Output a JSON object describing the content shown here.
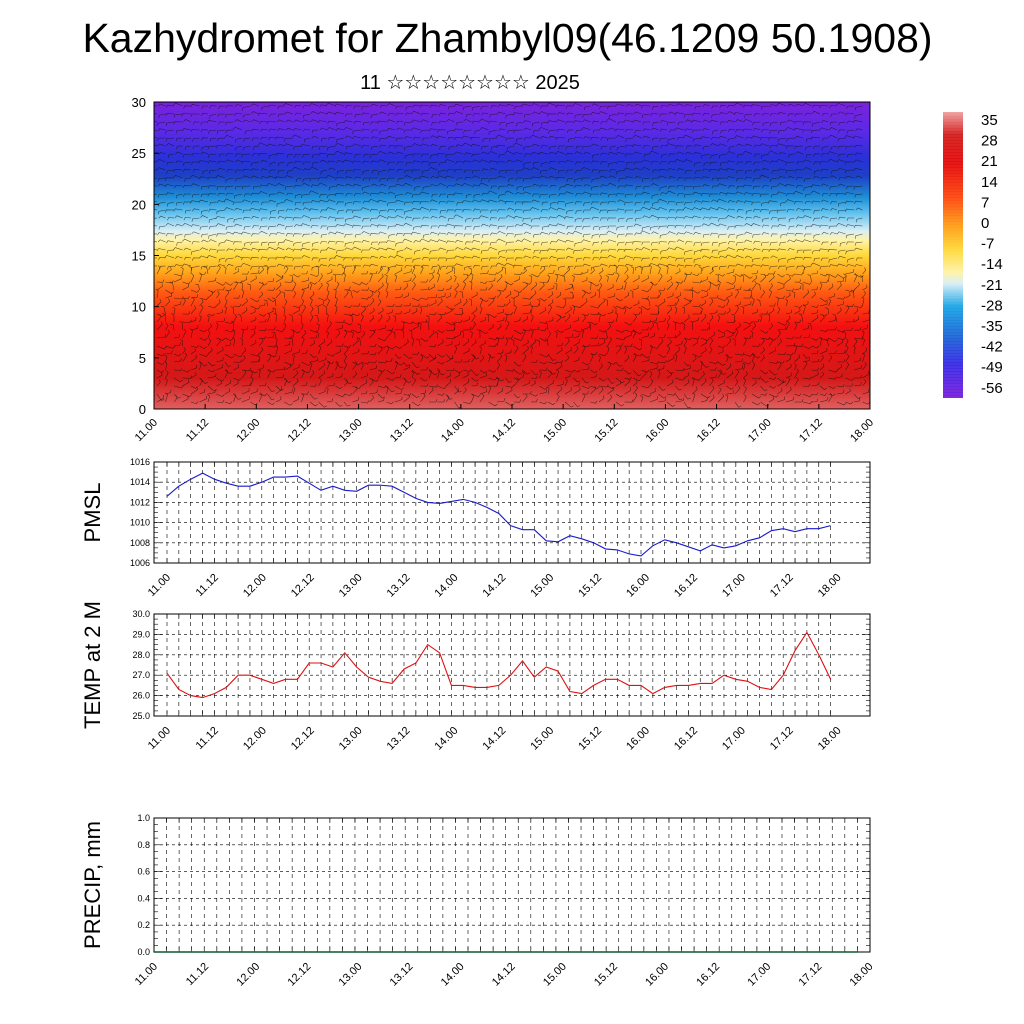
{
  "header": {
    "title": "Kazhydromet for Zhambyl09(46.1209 50.1908)",
    "subtitle": "11 ☆☆☆☆☆☆☆☆ 2025"
  },
  "colors": {
    "pmsl_line": "#1a1acc",
    "temp_line": "#dd1111",
    "precip_line": "#0b5a2a",
    "colormap": [
      "#7a22dd",
      "#4a2ee6",
      "#2233d6",
      "#1e6ad6",
      "#1ea6e6",
      "#6fc8ee",
      "#d9eef6",
      "#fff3a6",
      "#ffd83a",
      "#ffa51a",
      "#ff6a14",
      "#ff1d10",
      "#e40d0d",
      "#d42020",
      "#e05a5a",
      "#f0a0a0"
    ]
  },
  "chart_data": [
    {
      "type": "heatmap",
      "title": "",
      "ylim": [
        0,
        30
      ],
      "yticks": [
        "0",
        "5",
        "10",
        "15",
        "20",
        "25",
        "30"
      ],
      "xticks": [
        "11.00",
        "11.12",
        "12.00",
        "12.12",
        "13.00",
        "13.12",
        "14.00",
        "14.12",
        "15.00",
        "15.12",
        "16.00",
        "16.12",
        "17.00",
        "17.12",
        "18.00"
      ],
      "colorbar_labels": [
        "35",
        "28",
        "21",
        "14",
        "7",
        "0",
        "-7",
        "-14",
        "-21",
        "-28",
        "-35",
        "-42",
        "-49",
        "-56"
      ],
      "colorbar_range": [
        -63,
        35
      ],
      "overlay": "wind barbs"
    },
    {
      "type": "line",
      "ylabel": "PMSL",
      "ylim": [
        1006,
        1016
      ],
      "yticks": [
        "1006",
        "1008",
        "1010",
        "1012",
        "1014",
        "1016"
      ],
      "xticks": [
        "11.00",
        "11.12",
        "12.00",
        "12.12",
        "13.00",
        "13.12",
        "14.00",
        "14.12",
        "15.00",
        "15.12",
        "16.00",
        "16.12",
        "17.00",
        "17.12",
        "18.00"
      ],
      "series": [
        {
          "values": [
            1012.6,
            1013.6,
            1014.3,
            1014.9,
            1014.3,
            1013.9,
            1013.6,
            1013.6,
            1014.0,
            1014.5,
            1014.5,
            1014.6,
            1013.9,
            1013.2,
            1013.6,
            1013.2,
            1013.1,
            1013.7,
            1013.7,
            1013.6,
            1013.0,
            1012.4,
            1012.0,
            1011.9,
            1012.1,
            1012.3,
            1012.0,
            1011.5,
            1010.9,
            1009.7,
            1009.3,
            1009.3,
            1008.2,
            1008.1,
            1008.7,
            1008.4,
            1008.0,
            1007.4,
            1007.3,
            1006.9,
            1006.7,
            1007.7,
            1008.3,
            1008.0,
            1007.6,
            1007.2,
            1007.8,
            1007.5,
            1007.7,
            1008.2,
            1008.5,
            1009.2,
            1009.4,
            1009.1,
            1009.4,
            1009.4,
            1009.7
          ]
        }
      ]
    },
    {
      "type": "line",
      "ylabel": "TEMP at 2 M",
      "ylim": [
        25.0,
        30.0
      ],
      "yticks": [
        "25.0",
        "26.0",
        "27.0",
        "28.0",
        "29.0",
        "30.0"
      ],
      "xticks": [
        "11.00",
        "11.12",
        "12.00",
        "12.12",
        "13.00",
        "13.12",
        "14.00",
        "14.12",
        "15.00",
        "15.12",
        "16.00",
        "16.12",
        "17.00",
        "17.12",
        "18.00"
      ],
      "series": [
        {
          "values": [
            27.1,
            26.3,
            26.0,
            25.9,
            26.1,
            26.4,
            27.0,
            27.0,
            26.8,
            26.6,
            26.8,
            26.8,
            27.6,
            27.6,
            27.4,
            28.1,
            27.4,
            26.9,
            26.7,
            26.6,
            27.3,
            27.6,
            28.5,
            28.1,
            26.5,
            26.5,
            26.4,
            26.4,
            26.5,
            27.0,
            27.7,
            26.9,
            27.4,
            27.2,
            26.2,
            26.1,
            26.5,
            26.8,
            26.8,
            26.5,
            26.5,
            26.1,
            26.4,
            26.5,
            26.5,
            26.6,
            26.6,
            27.0,
            26.8,
            26.7,
            26.4,
            26.3,
            27.0,
            28.2,
            29.1,
            28.0,
            26.8
          ]
        }
      ]
    },
    {
      "type": "line",
      "ylabel": "PRECIP, mm",
      "ylim": [
        0.0,
        1.0
      ],
      "yticks": [
        "0.0",
        "0.2",
        "0.4",
        "0.6",
        "0.8",
        "1.0"
      ],
      "xticks": [
        "11.00",
        "11.12",
        "12.00",
        "12.12",
        "13.00",
        "13.12",
        "14.00",
        "14.12",
        "15.00",
        "15.12",
        "16.00",
        "16.12",
        "17.00",
        "17.12",
        "18.00"
      ],
      "series": [
        {
          "values": [
            0,
            0,
            0,
            0,
            0,
            0,
            0,
            0,
            0,
            0,
            0,
            0,
            0,
            0,
            0,
            0,
            0,
            0,
            0,
            0,
            0,
            0,
            0,
            0,
            0,
            0,
            0,
            0,
            0,
            0,
            0,
            0,
            0,
            0,
            0,
            0,
            0,
            0,
            0,
            0,
            0,
            0,
            0,
            0,
            0,
            0,
            0,
            0,
            0,
            0,
            0,
            0,
            0,
            0,
            0,
            0,
            0
          ]
        }
      ]
    }
  ]
}
